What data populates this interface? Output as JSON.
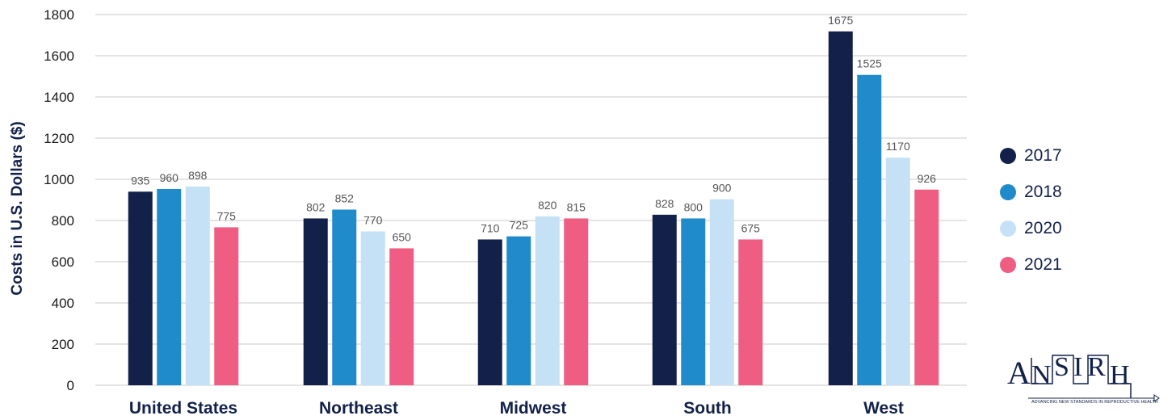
{
  "chart_data": {
    "type": "bar",
    "categories": [
      "United States",
      "Northeast",
      "Midwest",
      "South",
      "West"
    ],
    "series": [
      {
        "name": "2017",
        "color": "#13214a",
        "values": [
          935,
          802,
          710,
          828,
          1675
        ]
      },
      {
        "name": "2018",
        "color": "#1f8bcb",
        "values": [
          960,
          852,
          725,
          800,
          1525
        ]
      },
      {
        "name": "2020",
        "color": "#c5e1f6",
        "values": [
          898,
          770,
          820,
          900,
          1170
        ]
      },
      {
        "name": "2021",
        "color": "#ef5e82",
        "values": [
          775,
          650,
          815,
          675,
          926
        ]
      }
    ],
    "bar_heights": [
      [
        940,
        810,
        708,
        828,
        1718
      ],
      [
        953,
        853,
        723,
        810,
        1507
      ],
      [
        965,
        747,
        820,
        903,
        1105
      ],
      [
        767,
        665,
        810,
        708,
        950
      ]
    ],
    "ylabel": "Costs in U.S. Dollars ($)",
    "xlabel": "",
    "ylim": [
      0,
      1800
    ],
    "yticks": [
      0,
      200,
      400,
      600,
      800,
      1000,
      1200,
      1400,
      1600,
      1800
    ],
    "grid": true,
    "legend_position": "right"
  },
  "logo": {
    "name": "ANSIRH",
    "tagline": "ADVANCING NEW STANDARDS IN REPRODUCTIVE HEALTH"
  }
}
